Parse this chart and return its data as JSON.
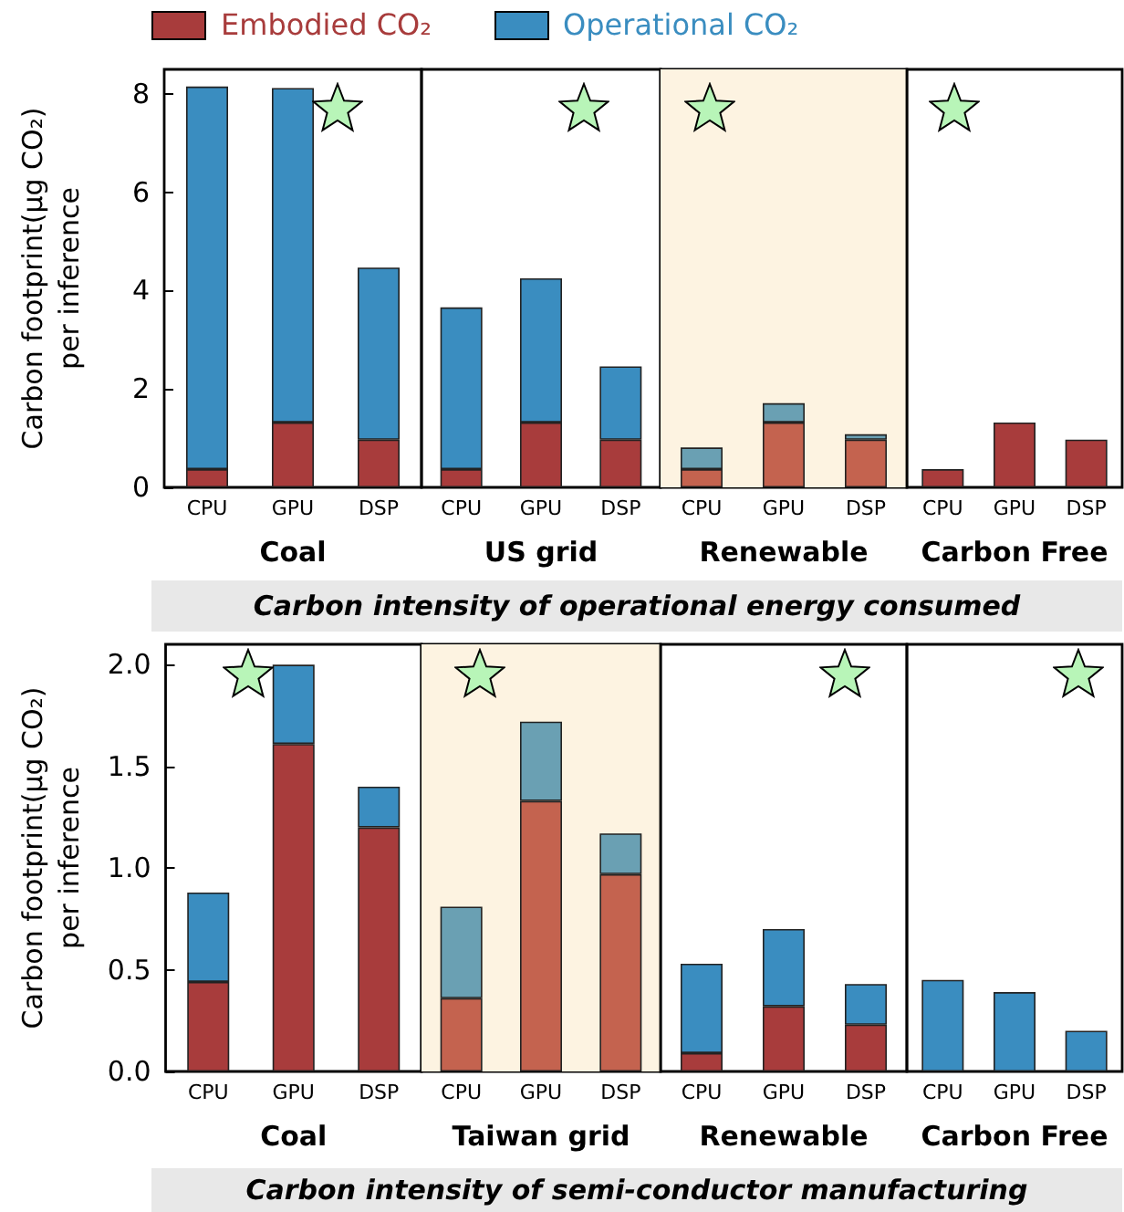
{
  "chart_data": [
    {
      "type": "bar",
      "stacked": true,
      "legend": "top",
      "xlabel": "Coal",
      "ylabel": "Carbon footprint(μg CO₂)\nper inference",
      "categories": [
        "CPU",
        "GPU",
        "DSP"
      ],
      "ylim": [
        0,
        8.5
      ],
      "yticks": [
        0,
        2,
        4,
        6,
        8
      ],
      "annotations": [
        "Carbon intensity of operational energy consumed"
      ],
      "series": [
        {
          "name": "Embodied CO₂",
          "color": "#a83c3c",
          "values": [
            0.37,
            1.32,
            0.97
          ]
        },
        {
          "name": "Operational CO₂",
          "color": "#3a8dc0",
          "values": [
            7.78,
            6.8,
            3.5
          ]
        }
      ]
    },
    {
      "type": "bar",
      "stacked": true,
      "xlabel": "US grid",
      "categories": [
        "CPU",
        "GPU",
        "DSP"
      ],
      "ylim": [
        0,
        8.5
      ],
      "tick_labels": "x",
      "series": [
        {
          "color": "#a83c3c",
          "values": [
            0.37,
            1.32,
            0.97
          ]
        },
        {
          "color": "#3a8dc0",
          "values": [
            3.29,
            2.93,
            1.49
          ]
        }
      ]
    },
    {
      "type": "bar",
      "stacked": true,
      "xlabel": "Renewable",
      "categories": [
        "CPU",
        "GPU",
        "DSP"
      ],
      "ylim": [
        0,
        8.5
      ],
      "tick_labels": "x",
      "bands": [
        {
          "axis": "y",
          "from": 0,
          "to": 8.5,
          "color": "#fdf3e1"
        }
      ],
      "series": [
        {
          "color": "#c4634f",
          "values": [
            0.37,
            1.32,
            0.97
          ]
        },
        {
          "color": "#6aa0b3",
          "values": [
            0.44,
            0.39,
            0.11
          ]
        }
      ]
    },
    {
      "type": "bar",
      "stacked": true,
      "xlabel": "Carbon Free",
      "categories": [
        "CPU",
        "GPU",
        "DSP"
      ],
      "ylim": [
        0,
        8.5
      ],
      "tick_labels": "x",
      "series": [
        {
          "color": "#a83c3c",
          "values": [
            0.37,
            1.32,
            0.97
          ]
        },
        {
          "color": "#3a8dc0",
          "values": [
            0,
            0,
            0
          ]
        }
      ]
    },
    {
      "type": "bar",
      "stacked": true,
      "xlabel": "Coal",
      "ylabel": "Carbon footprint(μg CO₂)\nper inference",
      "categories": [
        "CPU",
        "GPU",
        "DSP"
      ],
      "ylim": [
        0,
        2.1
      ],
      "yticks": [
        {
          "value": 0,
          "label": "0.0"
        },
        {
          "value": 0.5,
          "label": "0.5"
        },
        {
          "value": 1,
          "label": "1.0"
        },
        {
          "value": 1.5,
          "label": "1.5"
        },
        {
          "value": 2,
          "label": "2.0"
        }
      ],
      "annotations": [
        "Carbon intensity of semi-conductor manufacturing"
      ],
      "series": [
        {
          "color": "#a83c3c",
          "values": [
            0.44,
            1.61,
            1.2
          ]
        },
        {
          "color": "#3a8dc0",
          "values": [
            0.44,
            0.39,
            0.2
          ]
        }
      ]
    },
    {
      "type": "bar",
      "stacked": true,
      "xlabel": "Taiwan grid",
      "categories": [
        "CPU",
        "GPU",
        "DSP"
      ],
      "ylim": [
        0,
        2.1
      ],
      "tick_labels": "x",
      "bands": [
        {
          "axis": "y",
          "from": 0,
          "to": 2.1,
          "color": "#fdf3e1"
        }
      ],
      "series": [
        {
          "color": "#c4634f",
          "values": [
            0.36,
            1.33,
            0.97
          ]
        },
        {
          "color": "#6aa0b3",
          "values": [
            0.45,
            0.39,
            0.2
          ]
        }
      ]
    },
    {
      "type": "bar",
      "stacked": true,
      "xlabel": "Renewable",
      "categories": [
        "CPU",
        "GPU",
        "DSP"
      ],
      "ylim": [
        0,
        2.1
      ],
      "tick_labels": "x",
      "series": [
        {
          "color": "#a83c3c",
          "values": [
            0.09,
            0.32,
            0.23
          ]
        },
        {
          "color": "#3a8dc0",
          "values": [
            0.44,
            0.38,
            0.2
          ]
        }
      ]
    },
    {
      "type": "bar",
      "stacked": true,
      "xlabel": "Carbon Free",
      "categories": [
        "CPU",
        "GPU",
        "DSP"
      ],
      "ylim": [
        0,
        2.1
      ],
      "tick_labels": "x",
      "series": [
        {
          "color": "#a83c3c",
          "values": [
            0,
            0,
            0
          ]
        },
        {
          "color": "#3a8dc0",
          "values": [
            0.45,
            0.39,
            0.2
          ]
        }
      ]
    }
  ]
}
